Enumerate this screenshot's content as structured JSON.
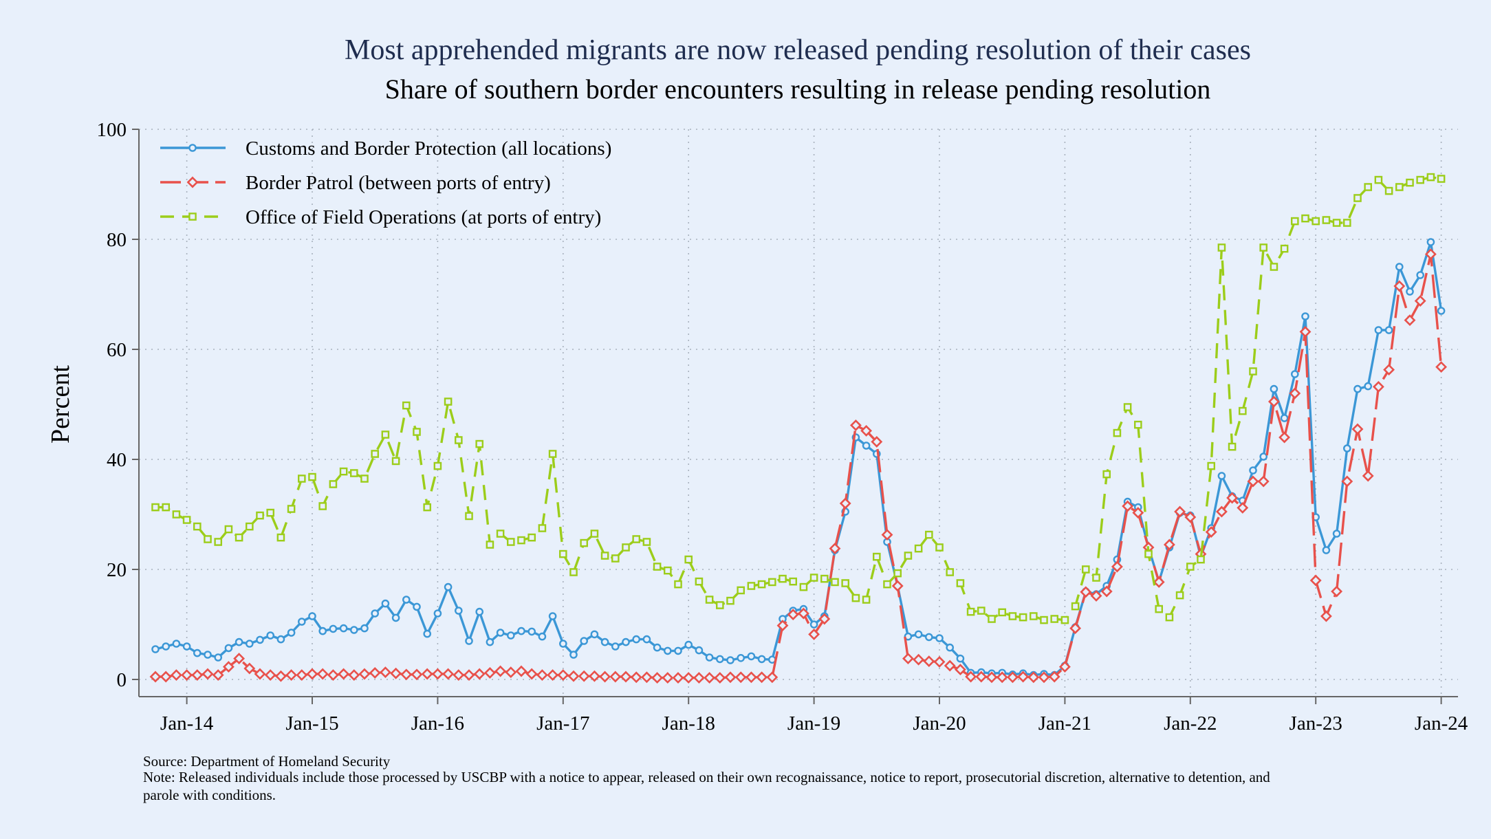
{
  "chart_data": {
    "type": "line",
    "title": "Most apprehended migrants are now released pending resolution of their cases",
    "subtitle": "Share of southern border encounters resulting in release pending resolution",
    "xlabel": "",
    "ylabel": "Percent",
    "ylim": [
      0,
      100
    ],
    "yticks": [
      0,
      20,
      40,
      60,
      80,
      100
    ],
    "y_tick_labels": [
      "0",
      "20",
      "40",
      "60",
      "80",
      "100"
    ],
    "grid": true,
    "legend_position": "top-left",
    "x_start": "Oct 2013",
    "x_end": "Dec 2023",
    "x_tick_labels": [
      "Jan-14",
      "Jan-15",
      "Jan-16",
      "Jan-17",
      "Jan-18",
      "Jan-19",
      "Jan-20",
      "Jan-21",
      "Jan-22",
      "Jan-23",
      "Jan-24"
    ],
    "x_tick_month_index": [
      3,
      15,
      27,
      39,
      51,
      63,
      75,
      87,
      99,
      111,
      123
    ],
    "series": [
      {
        "name": "Customs and Border Protection (all locations)",
        "color": "#3b97d6",
        "style": "solid",
        "marker": "circle",
        "values": [
          5.5,
          6.0,
          6.5,
          6.0,
          4.8,
          4.5,
          4.0,
          5.7,
          6.8,
          6.5,
          7.2,
          8.0,
          7.3,
          8.5,
          10.5,
          11.5,
          8.8,
          9.2,
          9.3,
          9.0,
          9.3,
          12.0,
          13.8,
          11.2,
          14.5,
          13.2,
          8.3,
          12.0,
          16.8,
          12.5,
          7.0,
          12.3,
          6.8,
          8.5,
          8.0,
          8.8,
          8.7,
          7.8,
          11.5,
          6.5,
          4.5,
          7.0,
          8.2,
          6.8,
          6.0,
          6.8,
          7.3,
          7.3,
          5.8,
          5.2,
          5.2,
          6.3,
          5.3,
          4.0,
          3.7,
          3.5,
          3.9,
          4.2,
          3.7,
          3.6,
          11.0,
          12.5,
          12.8,
          10.0,
          11.5,
          23.5,
          30.5,
          44.0,
          42.5,
          41.0,
          25.0,
          17.0,
          7.8,
          8.2,
          7.7,
          7.5,
          5.8,
          3.8,
          1.2,
          1.3,
          1.1,
          1.2,
          0.9,
          1.1,
          0.8,
          1.0,
          0.8,
          2.5,
          9.5,
          16.0,
          15.5,
          17.0,
          21.8,
          32.3,
          31.3,
          24.0,
          17.8,
          24.0,
          30.3,
          29.8,
          22.3,
          27.5,
          37.0,
          33.3,
          32.5,
          38.0,
          40.5,
          52.8,
          47.5,
          55.5,
          66.0,
          29.5,
          23.5,
          26.5,
          42.0,
          52.8,
          53.3,
          63.5,
          63.5,
          75.0,
          70.5,
          73.5,
          79.5,
          67.0
        ]
      },
      {
        "name": "Border Patrol (between ports of entry)",
        "color": "#e8514b",
        "style": "longdash",
        "marker": "diamond",
        "values": [
          0.5,
          0.5,
          0.8,
          0.8,
          0.8,
          1.0,
          0.8,
          2.3,
          3.8,
          2.0,
          1.0,
          0.8,
          0.6,
          0.8,
          0.8,
          1.0,
          1.0,
          0.8,
          1.0,
          0.8,
          1.0,
          1.2,
          1.3,
          1.1,
          0.9,
          0.9,
          1.0,
          1.0,
          1.0,
          0.8,
          0.8,
          1.0,
          1.2,
          1.5,
          1.3,
          1.5,
          1.0,
          0.8,
          0.8,
          0.8,
          0.6,
          0.6,
          0.6,
          0.5,
          0.5,
          0.5,
          0.4,
          0.4,
          0.3,
          0.3,
          0.3,
          0.3,
          0.3,
          0.3,
          0.3,
          0.4,
          0.4,
          0.4,
          0.4,
          0.4,
          9.8,
          11.8,
          12.0,
          8.2,
          11.0,
          23.8,
          32.0,
          46.2,
          45.2,
          43.2,
          26.3,
          17.0,
          3.8,
          3.6,
          3.3,
          3.2,
          2.5,
          1.8,
          0.5,
          0.5,
          0.4,
          0.4,
          0.4,
          0.5,
          0.4,
          0.4,
          0.5,
          2.3,
          9.3,
          15.9,
          15.2,
          16.0,
          20.5,
          31.5,
          30.3,
          24.0,
          17.7,
          24.5,
          30.5,
          29.5,
          22.8,
          26.8,
          30.5,
          33.0,
          31.2,
          36.0,
          36.0,
          50.5,
          44.0,
          52.0,
          63.2,
          18.0,
          11.5,
          16.0,
          36.0,
          45.5,
          37.0,
          53.2,
          56.3,
          71.5,
          65.3,
          68.8,
          77.3,
          56.8
        ]
      },
      {
        "name": "Office of Field Operations (at ports of entry)",
        "color": "#9ccd1a",
        "style": "dash",
        "marker": "square",
        "values": [
          31.3,
          31.3,
          30.0,
          29.0,
          27.8,
          25.5,
          25.0,
          27.3,
          25.8,
          27.8,
          29.8,
          30.3,
          25.8,
          31.0,
          36.5,
          36.8,
          31.5,
          35.5,
          37.8,
          37.5,
          36.5,
          41.0,
          44.5,
          39.7,
          49.8,
          45.0,
          31.3,
          38.8,
          50.5,
          43.5,
          29.7,
          42.8,
          24.5,
          26.5,
          25.0,
          25.3,
          25.8,
          27.5,
          41.0,
          22.8,
          19.5,
          24.8,
          26.5,
          22.5,
          22.0,
          24.0,
          25.5,
          25.0,
          20.5,
          19.8,
          17.3,
          21.8,
          17.8,
          14.5,
          13.5,
          14.3,
          16.2,
          17.0,
          17.3,
          17.7,
          18.3,
          17.8,
          16.8,
          18.5,
          18.3,
          17.7,
          17.5,
          14.8,
          14.5,
          22.3,
          17.3,
          19.3,
          22.5,
          23.8,
          26.3,
          24.0,
          19.5,
          17.5,
          12.3,
          12.5,
          11.0,
          12.2,
          11.5,
          11.3,
          11.5,
          10.8,
          11.0,
          10.8,
          13.3,
          20.0,
          18.5,
          37.3,
          44.8,
          49.5,
          46.3,
          22.8,
          12.8,
          11.3,
          15.3,
          20.5,
          21.8,
          38.8,
          78.5,
          42.3,
          48.8,
          56.0,
          78.5,
          75.0,
          78.3,
          83.3,
          83.8,
          83.3,
          83.5,
          83.0,
          83.0,
          87.5,
          89.5,
          90.8,
          88.8,
          89.5,
          90.3,
          90.8,
          91.3,
          91.0
        ]
      }
    ]
  },
  "footer": {
    "source": "Source: Department of Homeland Security",
    "note_line1": "Note: Released individuals include those processed by USCBP with a notice to appear, released on their own recognaissance, notice to report, prosecutorial discretion, alternative to detention, and",
    "note_line2": "parole with conditions."
  }
}
